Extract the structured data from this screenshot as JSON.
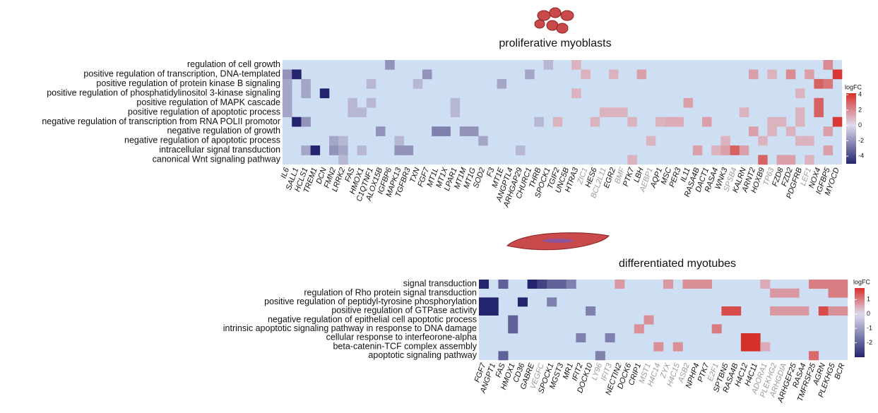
{
  "chart_data": [
    {
      "type": "heatmap",
      "title": "proliferative myoblasts",
      "rows": [
        "regulation of cell growth",
        "positive regulation of transcription, DNA-templated",
        "positive regulation of protein kinase B signaling",
        "positive regulation of phosphatidylinositol 3-kinase signaling",
        "positive regulation of MAPK cascade",
        "positive regulation of apoptotic process",
        "negative regulation of transcription from RNA POLII promotor",
        "negative regulation of growth",
        "negative regulation of apoptotic process",
        "intracellular signal transduction",
        "canonical Wnt signaling pathway"
      ],
      "columns": [
        "IL6",
        "SALL1",
        "HCLS1",
        "TREM1",
        "DCN",
        "FMN2",
        "LRRK2",
        "FAS",
        "HMOX1",
        "C1QTNF1",
        "ALOX15B",
        "IGFBP6",
        "MAPK13",
        "TGFBR3",
        "TXN",
        "FGF7",
        "MT1L",
        "MT1X",
        "LPAR1",
        "MT1M",
        "MT1G",
        "SOD2",
        "F3",
        "MT1E",
        "ANGPTL4",
        "ARHGAP29",
        "CHURC1",
        "THRB",
        "SPOCK1",
        "TGIF2",
        "UNC5B",
        "HTRA3",
        "ZIC1",
        "HES6",
        "BCL2L11",
        "EGR2",
        "BMF",
        "PTK7",
        "LBH",
        "AEBP1",
        "AQP1",
        "MSC",
        "PER3",
        "IL11",
        "RASA4B",
        "DACT1",
        "RASA4",
        "WNK3",
        "SPSB4",
        "KALRN",
        "ARNT2",
        "HOXB9",
        "TP63",
        "FZD8",
        "FZD2",
        "PDGFRB",
        "LEF1",
        "NOX4",
        "IGFBP5",
        "MYOCD"
      ],
      "muted_columns": [
        32,
        34,
        36,
        39,
        48,
        52,
        56
      ],
      "cells": [
        [
          0,
          11,
          -2
        ],
        [
          0,
          28,
          -1
        ],
        [
          0,
          31,
          1
        ],
        [
          0,
          58,
          2
        ],
        [
          1,
          0,
          -2
        ],
        [
          1,
          1,
          -5
        ],
        [
          1,
          15,
          -2
        ],
        [
          1,
          26,
          -1.5
        ],
        [
          1,
          32,
          1
        ],
        [
          1,
          35,
          1
        ],
        [
          1,
          38,
          1.5
        ],
        [
          1,
          50,
          1.5
        ],
        [
          1,
          52,
          1
        ],
        [
          1,
          54,
          2
        ],
        [
          1,
          56,
          1.5
        ],
        [
          1,
          59,
          4
        ],
        [
          2,
          0,
          -1.5
        ],
        [
          2,
          2,
          -1.5
        ],
        [
          2,
          9,
          -1
        ],
        [
          2,
          14,
          -1
        ],
        [
          2,
          23,
          -1.5
        ],
        [
          2,
          57,
          3
        ],
        [
          2,
          58,
          2.5
        ],
        [
          3,
          0,
          -1.5
        ],
        [
          3,
          2,
          -1.5
        ],
        [
          3,
          4,
          -5
        ],
        [
          3,
          31,
          1
        ],
        [
          3,
          55,
          1
        ],
        [
          4,
          0,
          -1.5
        ],
        [
          4,
          7,
          -1
        ],
        [
          4,
          9,
          -1
        ],
        [
          4,
          18,
          -1
        ],
        [
          4,
          43,
          1.5
        ],
        [
          4,
          57,
          3
        ],
        [
          5,
          0,
          -1.5
        ],
        [
          5,
          7,
          -1
        ],
        [
          5,
          8,
          -1
        ],
        [
          5,
          18,
          -1
        ],
        [
          5,
          34,
          1
        ],
        [
          5,
          35,
          1
        ],
        [
          5,
          36,
          1
        ],
        [
          5,
          49,
          1
        ],
        [
          5,
          55,
          1
        ],
        [
          5,
          57,
          3
        ],
        [
          6,
          1,
          -5
        ],
        [
          6,
          2,
          -2
        ],
        [
          6,
          27,
          -1
        ],
        [
          6,
          29,
          1
        ],
        [
          6,
          33,
          1
        ],
        [
          6,
          37,
          1
        ],
        [
          6,
          40,
          1
        ],
        [
          6,
          41,
          1.2
        ],
        [
          6,
          42,
          1.2
        ],
        [
          6,
          45,
          1.5
        ],
        [
          6,
          52,
          1
        ],
        [
          6,
          53,
          1
        ],
        [
          6,
          55,
          1
        ],
        [
          6,
          59,
          4
        ],
        [
          7,
          10,
          -2
        ],
        [
          7,
          16,
          -2.5
        ],
        [
          7,
          17,
          -2.5
        ],
        [
          7,
          19,
          -2
        ],
        [
          7,
          20,
          -2
        ],
        [
          7,
          50,
          1.5
        ],
        [
          7,
          52,
          1
        ],
        [
          7,
          54,
          1
        ],
        [
          7,
          58,
          1.5
        ],
        [
          8,
          5,
          -1.5
        ],
        [
          8,
          6,
          -1
        ],
        [
          8,
          12,
          -1
        ],
        [
          8,
          21,
          -1.5
        ],
        [
          8,
          39,
          1
        ],
        [
          8,
          47,
          1
        ],
        [
          8,
          51,
          1
        ],
        [
          8,
          55,
          1
        ],
        [
          8,
          56,
          1
        ],
        [
          9,
          2,
          -1.5
        ],
        [
          9,
          3,
          -5
        ],
        [
          9,
          5,
          -2
        ],
        [
          9,
          6,
          -1.5
        ],
        [
          9,
          8,
          -1
        ],
        [
          9,
          12,
          -2
        ],
        [
          9,
          13,
          -2
        ],
        [
          9,
          25,
          -1
        ],
        [
          9,
          44,
          1.5
        ],
        [
          9,
          46,
          1
        ],
        [
          9,
          47,
          1.5
        ],
        [
          9,
          48,
          3
        ],
        [
          9,
          49,
          1.5
        ],
        [
          9,
          58,
          1.5
        ],
        [
          10,
          6,
          -1
        ],
        [
          10,
          37,
          1
        ],
        [
          10,
          51,
          3
        ],
        [
          10,
          53,
          1.5
        ],
        [
          10,
          54,
          1.5
        ],
        [
          10,
          56,
          1
        ]
      ],
      "clim": [
        -5,
        4.2
      ],
      "legend_title": "logFC",
      "legend_ticks": [
        4,
        2,
        0,
        -2,
        -4
      ],
      "colors": {
        "low": "#24246e",
        "mid": "#dcdcee",
        "high": "#d7302a"
      },
      "na_color": "#cfdff3"
    },
    {
      "type": "heatmap",
      "title": "differentiated myotubes",
      "rows": [
        "signal transduction",
        "regulation of Rho protein signal transduction",
        "positive regulation of peptidyl-tyrosine phosphorylation",
        "positive regulation of GTPase activity",
        "negative regulation of epithelial cell apoptotic process",
        "intrinsic apoptotic signaling pathway in response to DNA damage",
        "cellular response to interfeorone-alpha",
        "beta-catenin-TCF complex assembly",
        "apoptotic signaling pathway"
      ],
      "columns": [
        "FGF7",
        "ANGPT1",
        "FAS",
        "HMOX1",
        "CD36",
        "GABRE",
        "VEGFC",
        "SPOCK1",
        "MGST3",
        "MR1",
        "IFIT2",
        "DOCK10",
        "LY96",
        "IFIT3",
        "NECTIN2",
        "DOCK6",
        "CRIP1",
        "MST1",
        "H4C14",
        "ZYX",
        "H4C15",
        "ASB2",
        "NPHP4",
        "PTK7",
        "E2F1",
        "SPTBN5",
        "RASA4B",
        "H4C12",
        "H4C11",
        "ADORA1",
        "PLEKHG2",
        "ARHGDIA",
        "ARHGEF25",
        "RASA4",
        "TMFRSF25",
        "AGRN",
        "PLEKHG5",
        "BCR"
      ],
      "muted_columns": [
        6,
        12,
        13,
        17,
        18,
        19,
        20,
        21,
        24,
        29,
        30,
        31
      ],
      "cells": [
        [
          0,
          0,
          -3
        ],
        [
          0,
          2,
          -2
        ],
        [
          0,
          5,
          -3
        ],
        [
          0,
          6,
          -2.5
        ],
        [
          0,
          7,
          -2
        ],
        [
          0,
          8,
          -2
        ],
        [
          0,
          9,
          -1.5
        ],
        [
          0,
          14,
          0.7
        ],
        [
          0,
          19,
          0.7
        ],
        [
          0,
          21,
          0.8
        ],
        [
          0,
          22,
          0.8
        ],
        [
          0,
          23,
          0.8
        ],
        [
          0,
          29,
          0.5
        ],
        [
          0,
          34,
          1
        ],
        [
          0,
          35,
          1
        ],
        [
          0,
          36,
          1
        ],
        [
          0,
          37,
          1
        ],
        [
          1,
          30,
          0.7
        ],
        [
          1,
          31,
          0.7
        ],
        [
          1,
          32,
          0.7
        ],
        [
          1,
          36,
          1
        ],
        [
          1,
          37,
          1
        ],
        [
          2,
          0,
          -3
        ],
        [
          2,
          1,
          -3
        ],
        [
          2,
          4,
          -3
        ],
        [
          2,
          7,
          -1.5
        ],
        [
          3,
          0,
          -3
        ],
        [
          3,
          1,
          -3
        ],
        [
          3,
          11,
          -1.5
        ],
        [
          3,
          25,
          1.5
        ],
        [
          3,
          26,
          1.5
        ],
        [
          3,
          30,
          0.7
        ],
        [
          3,
          31,
          0.7
        ],
        [
          3,
          32,
          0.7
        ],
        [
          3,
          33,
          0.7
        ],
        [
          3,
          35,
          1.5
        ],
        [
          3,
          36,
          0.8
        ],
        [
          3,
          37,
          0.8
        ],
        [
          4,
          3,
          -2
        ],
        [
          4,
          17,
          0.8
        ],
        [
          5,
          3,
          -2
        ],
        [
          5,
          16,
          0.8
        ],
        [
          5,
          24,
          1
        ],
        [
          6,
          10,
          -1.5
        ],
        [
          6,
          13,
          -1.5
        ],
        [
          6,
          27,
          2
        ],
        [
          6,
          28,
          2
        ],
        [
          7,
          18,
          0.8
        ],
        [
          7,
          20,
          0.8
        ],
        [
          7,
          27,
          2
        ],
        [
          7,
          28,
          2
        ],
        [
          7,
          29,
          0.5
        ],
        [
          8,
          2,
          -2
        ],
        [
          8,
          12,
          -1.5
        ],
        [
          8,
          34,
          1.2
        ]
      ],
      "clim": [
        -3,
        1.8
      ],
      "legend_title": "logFC",
      "legend_ticks": [
        1,
        0,
        -1,
        -2
      ],
      "colors": {
        "low": "#24246e",
        "mid": "#dcdcee",
        "high": "#d7302a"
      },
      "na_color": "#cfdff3"
    }
  ]
}
